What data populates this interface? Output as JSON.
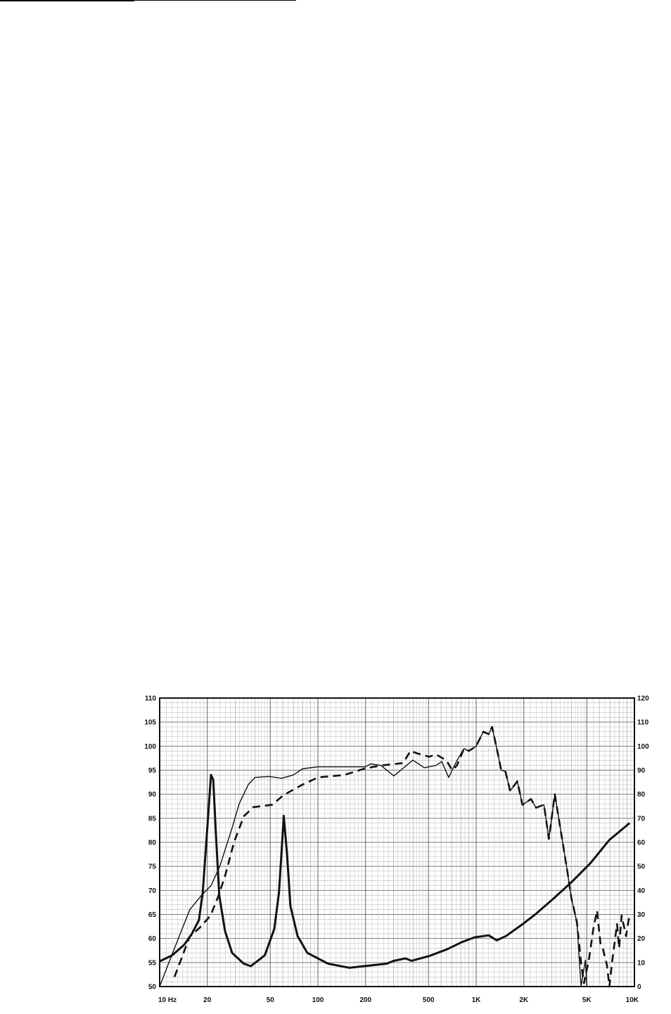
{
  "chart_data": {
    "type": "line",
    "title": "",
    "xlabel": "",
    "ylabel": "",
    "x_scale": "log",
    "xlim": [
      10,
      10000
    ],
    "ylim_left": [
      50,
      110
    ],
    "ylim_right": [
      0,
      120
    ],
    "grid": true,
    "x_tick_labels": [
      {
        "value": 10,
        "label": "10  Hz"
      },
      {
        "value": 20,
        "label": "20"
      },
      {
        "value": 50,
        "label": "50"
      },
      {
        "value": 100,
        "label": "100"
      },
      {
        "value": 200,
        "label": "200"
      },
      {
        "value": 500,
        "label": "500"
      },
      {
        "value": 1000,
        "label": "1K"
      },
      {
        "value": 2000,
        "label": "2K"
      },
      {
        "value": 5000,
        "label": "5K"
      },
      {
        "value": 10000,
        "label": "10K"
      }
    ],
    "y_left_ticks": [
      "50",
      "55",
      "60",
      "65",
      "70",
      "75",
      "80",
      "85",
      "90",
      "95",
      "100",
      "105",
      "110"
    ],
    "y_right_ticks": [
      "0",
      "10",
      "20",
      "30",
      "40",
      "50",
      "60",
      "70",
      "80",
      "90",
      "100",
      "110",
      "120"
    ],
    "series": [
      {
        "style": "thin-solid",
        "axis": "left",
        "color": "#111111",
        "x": [
          10,
          11.6,
          13.5,
          15.5,
          18.4,
          21.1,
          24,
          28.7,
          31.8,
          36.3,
          40,
          49.4,
          58.8,
          70,
          80,
          100,
          150,
          200,
          215,
          250,
          302,
          398,
          470,
          558,
          606,
          670,
          756,
          838,
          900,
          1000,
          1110,
          1200,
          1260,
          1350,
          1440,
          1530,
          1640,
          1820,
          1960,
          2220,
          2390,
          2680,
          2880,
          3140,
          3420,
          3780,
          4000,
          4330,
          4600,
          4900,
          5000,
          10000
        ],
        "y": [
          50,
          55.5,
          61,
          66,
          69,
          71,
          75,
          83,
          88,
          92,
          93.5,
          93.7,
          93.3,
          94,
          95.3,
          95.7,
          95.7,
          95.7,
          96.3,
          96,
          93.8,
          97.1,
          95.5,
          96,
          96.8,
          93.5,
          97,
          99.5,
          99,
          100,
          103,
          102.5,
          104,
          99.5,
          95,
          94.7,
          90.7,
          92.7,
          87.8,
          89,
          87.2,
          87.8,
          80.7,
          90,
          82.5,
          73.7,
          68.3,
          63.4,
          50,
          55.5,
          50,
          50
        ]
      },
      {
        "style": "dashed",
        "axis": "left",
        "color": "#111111",
        "x": [
          12.4,
          15.5,
          18,
          21,
          23.4,
          25.9,
          29.5,
          34,
          39,
          51.4,
          60.6,
          80,
          100,
          147,
          200,
          254,
          346,
          384,
          424,
          505,
          558,
          650,
          705,
          756,
          838,
          900,
          1000,
          1110,
          1200,
          1260,
          1350,
          1440,
          1530,
          1640,
          1820,
          1960,
          2220,
          2390,
          2680,
          2880,
          3140,
          3420,
          3780,
          4000,
          4330,
          4600,
          4800,
          5150,
          5500,
          5800,
          6100,
          6300,
          6700,
          6950,
          7250,
          7770,
          8000,
          8300,
          8850,
          9300
        ],
        "y": [
          52,
          60.4,
          62.3,
          64.8,
          68.7,
          73,
          80,
          85.4,
          87.3,
          87.8,
          89.8,
          92,
          93.5,
          94,
          95.4,
          96,
          96.5,
          99,
          98.5,
          97.8,
          98.3,
          97,
          95,
          96,
          99.5,
          99,
          100,
          103,
          102.5,
          104,
          99.5,
          95,
          94.7,
          90.7,
          92.7,
          87.8,
          89,
          87.2,
          87.8,
          80.7,
          90,
          82.5,
          73.7,
          68.3,
          63.4,
          55,
          50.7,
          55.5,
          62,
          65.8,
          59,
          58,
          54.5,
          50,
          55.5,
          63,
          58,
          64.8,
          60.5,
          64.8
        ]
      },
      {
        "style": "thick-solid",
        "axis": "right",
        "color": "#111111",
        "x": [
          10,
          12,
          14.3,
          16,
          17.7,
          18.7,
          19.7,
          21.1,
          21.8,
          22.6,
          23.8,
          25.9,
          28.7,
          34,
          37.7,
          46.2,
          53,
          56.7,
          59.8,
          60.8,
          63.8,
          67,
          74.4,
          85.8,
          116,
          158,
          272,
          302,
          358,
          390,
          505,
          660,
          812,
          980,
          1200,
          1350,
          1540,
          1960,
          2340,
          3080,
          4000,
          5270,
          6950,
          9330
        ],
        "y": [
          10.5,
          13,
          17.4,
          22,
          27.6,
          39,
          60,
          88,
          86,
          65,
          38,
          23,
          14,
          9.5,
          8.5,
          13,
          24,
          39,
          63,
          71,
          55,
          33.5,
          21,
          14,
          9.5,
          7.8,
          9.5,
          10.7,
          11.7,
          10.7,
          12.7,
          15.6,
          18.5,
          20.5,
          21.3,
          19.2,
          21,
          25.9,
          29.8,
          36.6,
          43.4,
          51.3,
          61,
          68
        ]
      }
    ]
  }
}
